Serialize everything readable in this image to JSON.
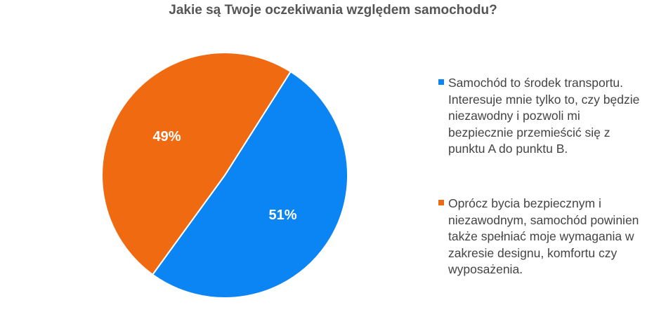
{
  "chart_data": {
    "type": "pie",
    "title": "Jakie są Twoje oczekiwania względem samochodu?",
    "legend_position": "right",
    "slices": [
      {
        "label": "Samochód to środek transportu.\nInteresuje mnie tylko to, czy będzie\nniezawodny i pozwoli mi\nbezpiecznie przemieścić się z\npunktu A do punktu B.",
        "value": 51,
        "display": "51%",
        "color": "#0b84f4"
      },
      {
        "label": "Oprócz bycia bezpiecznym i\nniezawodnym, samochód powinien\ntakże spełniać moje wymagania w\nzakresie designu, komfortu czy\nwyposażenia.",
        "value": 49,
        "display": "49%",
        "color": "#f06a12"
      }
    ]
  }
}
